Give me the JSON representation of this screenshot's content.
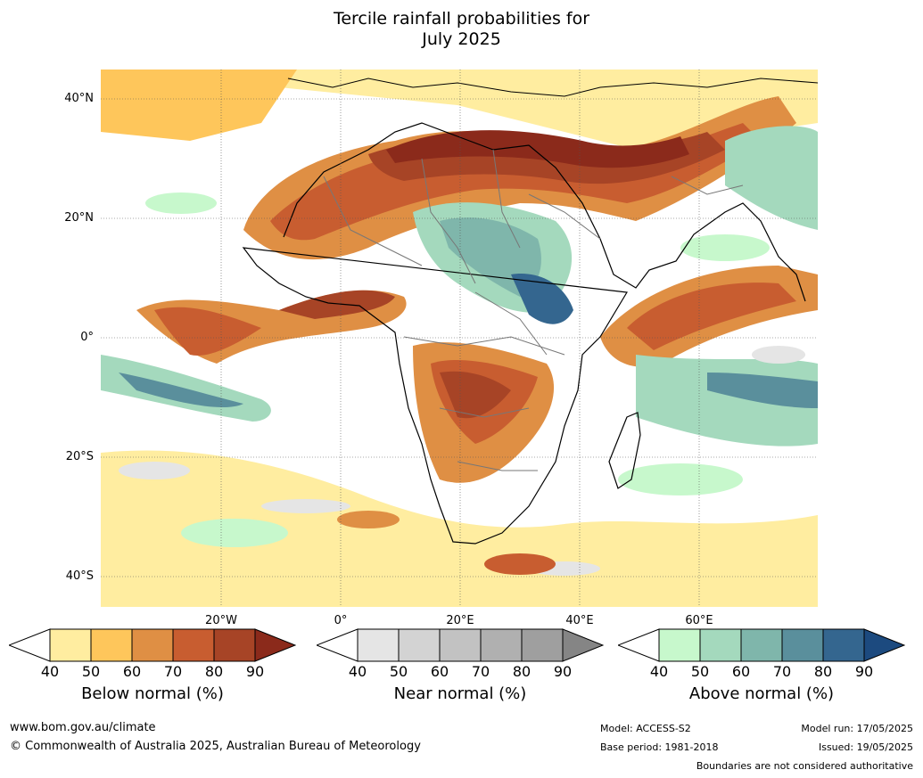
{
  "title_line1": "Tercile rainfall probabilities for",
  "title_line2": "July 2025",
  "map": {
    "lat_labels": [
      "40°N",
      "20°N",
      "0°",
      "20°S",
      "40°S"
    ],
    "lon_labels": [
      "20°W",
      "0°",
      "20°E",
      "40°E",
      "60°E"
    ],
    "colors": {
      "below": [
        "#ffeda0",
        "#fec65b",
        "#df8f44",
        "#c85d30",
        "#a74426",
        "#8b2a1b"
      ],
      "near": [
        "#e5e5e5",
        "#d3d3d3",
        "#c2c2c2",
        "#b0b0b0",
        "#9f9f9f",
        "#858585"
      ],
      "above": [
        "#c7f8cc",
        "#a4d9bd",
        "#7fb6ab",
        "#5a8f9c",
        "#34668f",
        "#1c4a7f"
      ],
      "land_border": "#000000",
      "country_border": "#777777"
    }
  },
  "colorbars": [
    {
      "title": "Below normal (%)",
      "ticks": [
        "40",
        "50",
        "60",
        "70",
        "80",
        "90"
      ]
    },
    {
      "title": "Near normal (%)",
      "ticks": [
        "40",
        "50",
        "60",
        "70",
        "80",
        "90"
      ]
    },
    {
      "title": "Above normal (%)",
      "ticks": [
        "40",
        "50",
        "60",
        "70",
        "80",
        "90"
      ]
    }
  ],
  "footer": {
    "website": "www.bom.gov.au/climate",
    "copyright": "© Commonwealth of Australia 2025, Australian Bureau of Meteorology",
    "model": "Model: ACCESS-S2",
    "base_period": "Base period: 1981-2018",
    "model_run": "Model run: 17/05/2025",
    "issued": "Issued: 19/05/2025",
    "disclaimer": "Boundaries are not considered authoritative"
  }
}
